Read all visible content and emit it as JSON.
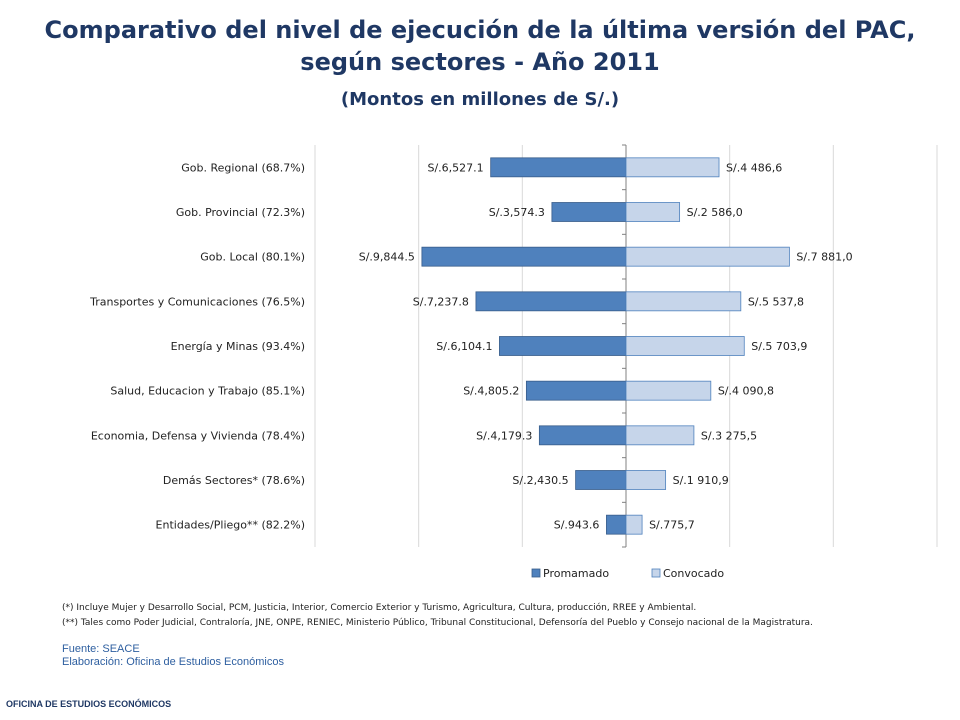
{
  "header": {
    "title": "Comparativo del nivel de ejecución de la última versión del PAC, según sectores - Año 2011",
    "subtitle": "(Montos en millones de S/.)"
  },
  "colors": {
    "promamado": "#4f81bd",
    "convocado": "#c6d5ea",
    "title": "#1f3864",
    "source": "#2e5fa0"
  },
  "chart_data": {
    "type": "bar",
    "orientation": "horizontal-diverging",
    "categories": [
      "Gob. Regional (68.7%)",
      "Gob. Provincial (72.3%)",
      "Gob. Local (80.1%)",
      "Transportes y Comunicaciones (76.5%)",
      "Energía y Minas (93.4%)",
      "Salud, Educacion y Trabajo (85.1%)",
      "Economia, Defensa y Vivienda (78.4%)",
      "Demás Sectores* (78.6%)",
      "Entidades/Pliego** (82.2%)"
    ],
    "series": [
      {
        "name": "Promamado",
        "values": [
          6527.1,
          3574.3,
          9844.5,
          7237.8,
          6104.1,
          4805.2,
          4179.3,
          2430.5,
          943.6
        ],
        "labels": [
          "S/.6,527.1",
          "S/.3,574.3",
          "S/.9,844.5",
          "S/.7,237.8",
          "S/.6,104.1",
          "S/.4,805.2",
          "S/.4,179.3",
          "S/.2,430.5",
          "S/.943.6"
        ]
      },
      {
        "name": "Convocado",
        "values": [
          4486.6,
          2586.0,
          7881.0,
          5537.8,
          5703.9,
          4090.8,
          3275.5,
          1910.9,
          775.7
        ],
        "labels": [
          "S/.4 486,6",
          "S/.2 586,0",
          "S/.7 881,0",
          "S/.5 537,8",
          "S/.5 703,9",
          "S/.4 090,8",
          "S/.3 275,5",
          "S/.1 910,9",
          "S/.775,7"
        ]
      }
    ],
    "xlim": [
      -15000,
      15000
    ],
    "grid": true,
    "legend": "bottom"
  },
  "notes": {
    "note1": "(*) Incluye Mujer y Desarrollo Social, PCM, Justicia, Interior, Comercio Exterior y Turismo, Agricultura, Cultura, producción, RREE y Ambiental.",
    "note2": "(**) Tales como Poder Judicial, Contraloría, JNE, ONPE, RENIEC, Ministerio Público, Tribunal Constitucional, Defensoría del Pueblo y Consejo nacional de la Magistratura."
  },
  "source": {
    "fuente": "Fuente: SEACE",
    "elaboracion": "Elaboración: Oficina de Estudios Económicos"
  },
  "footer": {
    "office": "OFICINA DE ESTUDIOS ECONÓMICOS"
  }
}
